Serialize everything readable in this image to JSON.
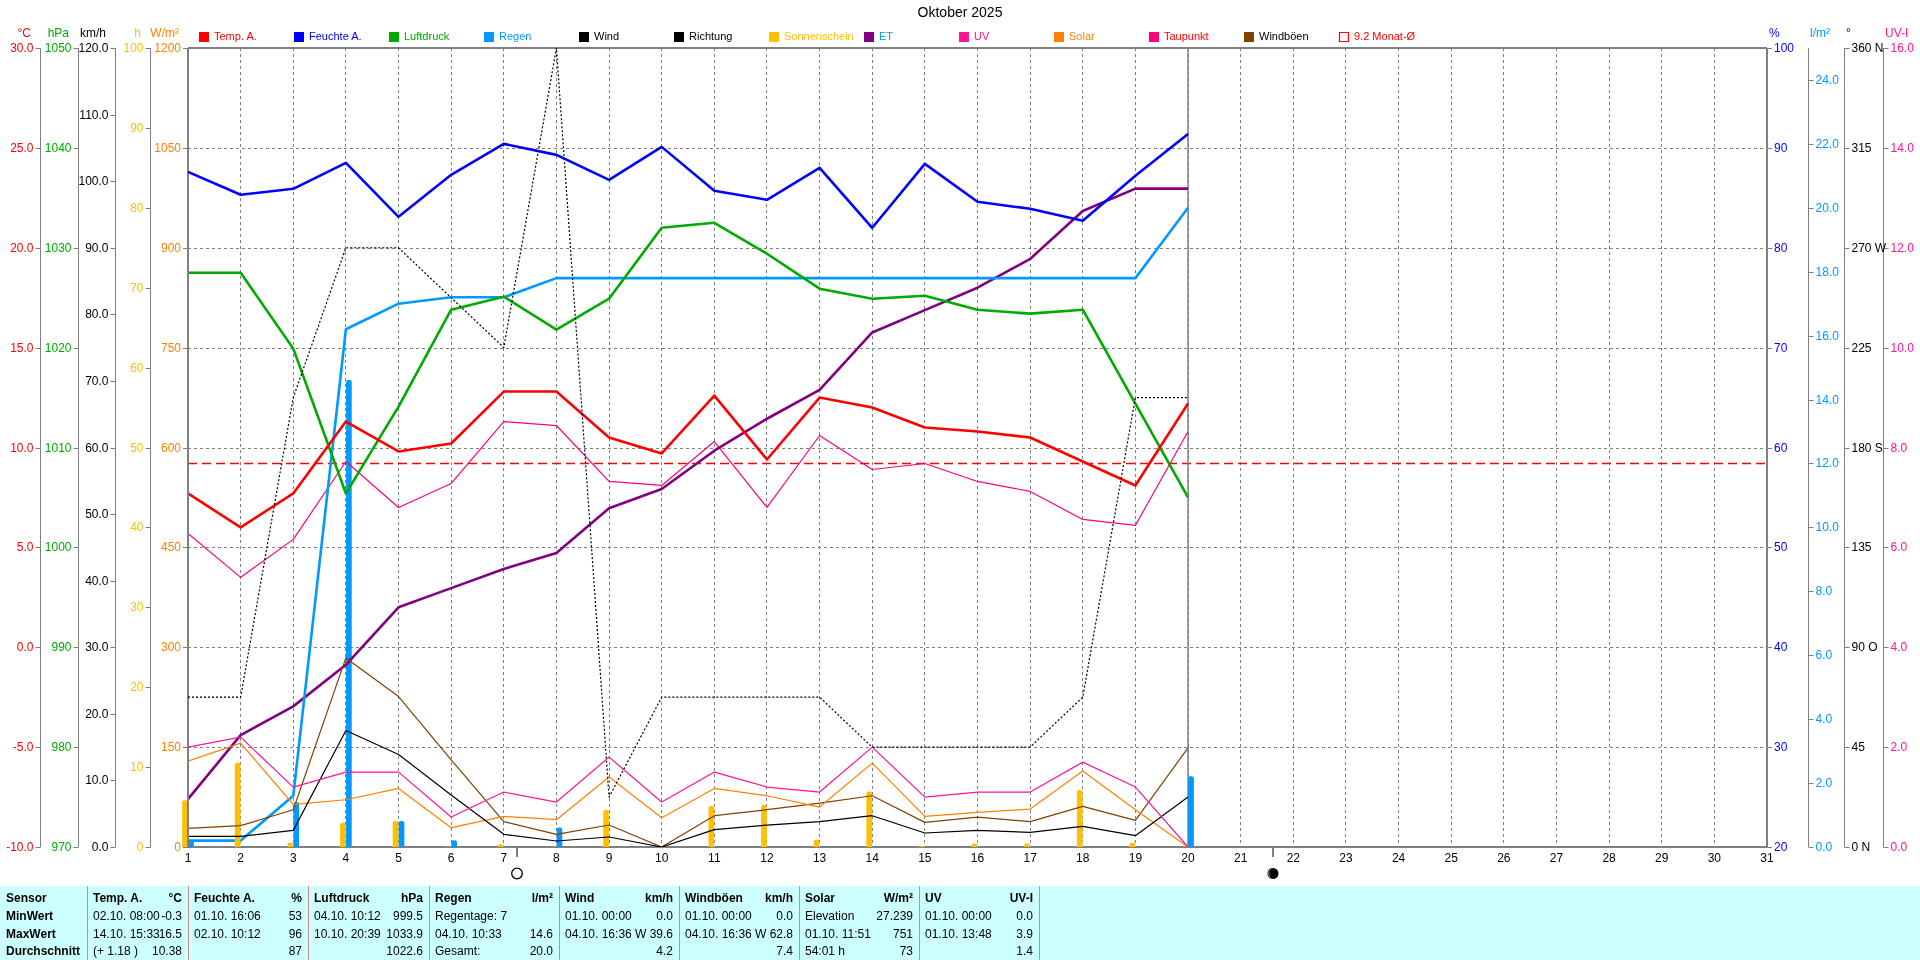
{
  "chart_data": [
    {
      "type": "line",
      "title": "Oktober 2025",
      "x": [
        1,
        2,
        3,
        4,
        5,
        6,
        7,
        8,
        9,
        10,
        11,
        12,
        13,
        14,
        15,
        16,
        17,
        18,
        19,
        20
      ],
      "xlim": [
        1,
        31
      ],
      "xticks": [
        1,
        2,
        3,
        4,
        5,
        6,
        7,
        8,
        9,
        10,
        11,
        12,
        13,
        14,
        15,
        16,
        17,
        18,
        19,
        20,
        21,
        22,
        23,
        24,
        25,
        26,
        27,
        28,
        29,
        30,
        31
      ],
      "ylabel": "°C",
      "ylim": [
        -10,
        30
      ],
      "yticks": [
        {
          "value": -10,
          "label": "-10.0"
        },
        {
          "value": -5,
          "label": "-5.0"
        },
        {
          "value": 0,
          "label": "0.0"
        },
        {
          "value": 5,
          "label": "5.0"
        },
        {
          "value": 10,
          "label": "10.0"
        },
        {
          "value": 15,
          "label": "15.0"
        },
        {
          "value": 20,
          "label": "20.0"
        },
        {
          "value": 25,
          "label": "25.0"
        },
        {
          "value": 30,
          "label": "30.0"
        }
      ],
      "y2label": "hPa",
      "y2lim": [
        970,
        1050
      ],
      "y2ticks": [
        970,
        980,
        990,
        1000,
        1010,
        1020,
        1030,
        1040,
        1050
      ],
      "y3label": "l/m²",
      "y3lim": [
        0,
        25
      ],
      "y3ticks": [
        {
          "value": 0,
          "label": "0.0"
        },
        {
          "value": 2,
          "label": "2.0"
        },
        {
          "value": 4,
          "label": "4.0"
        },
        {
          "value": 6,
          "label": "6.0"
        },
        {
          "value": 8,
          "label": "8.0"
        },
        {
          "value": 10,
          "label": "10.0"
        },
        {
          "value": 12,
          "label": "12.0"
        },
        {
          "value": 14,
          "label": "14.0"
        },
        {
          "value": 16,
          "label": "16.0"
        },
        {
          "value": 18,
          "label": "18.0"
        },
        {
          "value": 20,
          "label": "20.0"
        },
        {
          "value": 22,
          "label": "22.0"
        },
        {
          "value": 24,
          "label": "24.0"
        }
      ],
      "grid": true,
      "legend": "top",
      "marker": "none",
      "series": [
        {
          "name": "Temp. A.",
          "color": "#ff0000",
          "values": [
            7.7,
            6.0,
            7.7,
            11.3,
            9.8,
            10.2,
            12.8,
            12.8,
            10.5,
            9.7,
            12.6,
            9.4,
            12.5,
            12.0,
            11.0,
            10.8,
            10.5,
            9.3,
            8.1,
            12.2
          ]
        },
        {
          "name": "Luftdruck",
          "color": "#00aa00",
          "axis": "y2",
          "values": [
            1027.5,
            1027.5,
            1019.9,
            1005.4,
            1014.1,
            1023.8,
            1025.1,
            1021.8,
            1024.9,
            1032.0,
            1032.5,
            1029.4,
            1025.9,
            1024.9,
            1025.2,
            1023.8,
            1023.4,
            1023.8,
            1014.4,
            1005.0
          ]
        },
        {
          "name": "Regen",
          "color": "#0099ff",
          "axis": "y3",
          "values": [
            0.2,
            0.2,
            1.6,
            16.2,
            17.0,
            17.2,
            17.2,
            17.8,
            17.8,
            17.8,
            17.8,
            17.8,
            17.8,
            17.8,
            17.8,
            17.8,
            17.8,
            17.8,
            17.8,
            20.0
          ]
        },
        {
          "type": "bar",
          "color": "#0099ff",
          "axis": "y3",
          "values": [
            0.2,
            0,
            1.4,
            14.6,
            0.8,
            0.2,
            0,
            0.6,
            0,
            0,
            0,
            0,
            0,
            0,
            0,
            0,
            0,
            0,
            0,
            2.2
          ]
        },
        {
          "name": "ET",
          "color": "#800080",
          "axis": "y3",
          "values": [
            1.5,
            3.5,
            4.4,
            5.7,
            7.5,
            8.1,
            8.7,
            9.2,
            10.6,
            11.2,
            12.4,
            13.4,
            14.3,
            16.1,
            16.8,
            17.5,
            18.4,
            19.9,
            20.6,
            20.6
          ]
        },
        {
          "name": "Taupunkt",
          "color": "#ff0080",
          "values": [
            5.7,
            3.5,
            5.4,
            9.3,
            7.0,
            8.2,
            11.3,
            11.1,
            8.3,
            8.1,
            10.3,
            7.0,
            10.6,
            8.9,
            9.2,
            8.3,
            7.8,
            6.4,
            6.1,
            10.8
          ]
        }
      ],
      "ref_lines": [
        {
          "axis": "y",
          "value": 9.2,
          "label": "9.2 Monat-Ø",
          "color": "#ff0000",
          "line_style": "dashed"
        },
        {
          "axis": "x",
          "value": 20,
          "color": "#808080"
        }
      ],
      "annotations": [
        "Sensor",
        "Temp. A.",
        "°C",
        "Feuchte A.",
        "%",
        "Luftdruck",
        "hPa",
        "Regen",
        "l/m²",
        "Wind",
        "km/h",
        "Windböen",
        "km/h",
        "Solar",
        "W/m²",
        "UV",
        "UV-I",
        "MinWert",
        "02.10. 08:00",
        "-0.3",
        "01.10. 16:06",
        "53",
        "04.10. 10:12",
        "999.5",
        "Regentage: 7",
        "01.10. 00:00",
        "0.0",
        "01.10. 00:00",
        "0.0",
        "Elevation",
        "27.239",
        "01.10. 00:00",
        "0.0",
        "MaxWert",
        "14.10. 15:33",
        "16.5",
        "02.10. 10:12",
        "96",
        "10.10. 20:39",
        "1033.9",
        "04.10. 10:33",
        "14.6",
        "04.10. 16:36",
        "W 39.6",
        "04.10. 16:36",
        "W 62.8",
        "01.10. 11:51",
        "751",
        "01.10. 13:48",
        "3.9",
        "Durchschnitt",
        "(+ 1.18 )",
        "10.38",
        "87",
        "1022.6",
        "Gesamt:",
        "20.0",
        "4.2",
        "7.4",
        "54:01 h",
        "73",
        "1.4"
      ]
    },
    {
      "type": "line",
      "x": [
        1,
        2,
        3,
        4,
        5,
        6,
        7,
        8,
        9,
        10,
        11,
        12,
        13,
        14,
        15,
        16,
        17,
        18,
        19,
        20
      ],
      "xlim": [
        1,
        31
      ],
      "xticks": [
        1,
        2,
        3,
        4,
        5,
        6,
        7,
        8,
        9,
        10,
        11,
        12,
        13,
        14,
        15,
        16,
        17,
        18,
        19,
        20,
        21,
        22,
        23,
        24,
        25,
        26,
        27,
        28,
        29,
        30,
        31
      ],
      "tick_labels": "y",
      "ylabel": "km/h",
      "ylim": [
        0,
        120
      ],
      "yticks": [
        {
          "value": 0,
          "label": "0.0"
        },
        {
          "value": 10,
          "label": "10.0"
        },
        {
          "value": 20,
          "label": "20.0"
        },
        {
          "value": 30,
          "label": "30.0"
        },
        {
          "value": 40,
          "label": "40.0"
        },
        {
          "value": 50,
          "label": "50.0"
        },
        {
          "value": 60,
          "label": "60.0"
        },
        {
          "value": 70,
          "label": "70.0"
        },
        {
          "value": 80,
          "label": "80.0"
        },
        {
          "value": 90,
          "label": "90.0"
        },
        {
          "value": 100,
          "label": "100.0"
        },
        {
          "value": 110,
          "label": "110.0"
        },
        {
          "value": 120,
          "label": "120.0"
        }
      ],
      "y2label": "h",
      "y2lim": [
        0,
        100
      ],
      "y2ticks": [
        0,
        10,
        20,
        30,
        40,
        50,
        60,
        70,
        80,
        90,
        100
      ],
      "y3label": "W/m²",
      "y3lim": [
        0,
        1200
      ],
      "y3ticks": [
        0,
        150,
        300,
        450,
        600,
        750,
        900,
        1050,
        1200
      ],
      "legend": "top",
      "marker": "none",
      "series": [
        {
          "name": "Wind",
          "color": "#000000",
          "values": [
            1.6,
            1.6,
            2.5,
            17.5,
            13.9,
            7.8,
            1.9,
            0.9,
            1.5,
            0,
            2.6,
            3.3,
            3.8,
            4.7,
            2.1,
            2.5,
            2.2,
            3.1,
            1.7,
            7.5
          ]
        },
        {
          "name": "Sonnenschein",
          "type": "bar",
          "color": "#ffc000",
          "axis": "y2",
          "values": [
            5.8,
            10.5,
            0.5,
            3.0,
            3.2,
            0,
            0.3,
            0,
            4.6,
            0,
            5.1,
            5.2,
            0.9,
            6.9,
            0.1,
            0.4,
            0.4,
            7.1,
            0.5,
            0
          ]
        },
        {
          "name": "Solar",
          "color": "#ff8000",
          "axis": "y3",
          "values": [
            129,
            156,
            64,
            71,
            88,
            29,
            46,
            41,
            105,
            44,
            88,
            77,
            60,
            126,
            46,
            52,
            57,
            114,
            56,
            0
          ]
        },
        {
          "name": "Windböen",
          "color": "#804000",
          "values": [
            2.8,
            3.2,
            5.6,
            28.4,
            22.6,
            13.1,
            3.8,
            1.9,
            3.3,
            0,
            4.7,
            5.6,
            6.6,
            7.7,
            3.7,
            4.5,
            3.8,
            6.1,
            4.0,
            14.9
          ]
        }
      ]
    },
    {
      "type": "line",
      "x": [
        1,
        2,
        3,
        4,
        5,
        6,
        7,
        8,
        9,
        10,
        11,
        12,
        13,
        14,
        15,
        16,
        17,
        18,
        19,
        20
      ],
      "xlim": [
        1,
        31
      ],
      "xticks": [
        1,
        2,
        3,
        4,
        5,
        6,
        7,
        8,
        9,
        10,
        11,
        12,
        13,
        14,
        15,
        16,
        17,
        18,
        19,
        20,
        21,
        22,
        23,
        24,
        25,
        26,
        27,
        28,
        29,
        30,
        31
      ],
      "tick_labels": "y",
      "ylabel": "UV-I",
      "ylim": [
        0,
        16
      ],
      "yticks": [
        {
          "value": 0,
          "label": "0.0"
        },
        {
          "value": 2,
          "label": "2.0"
        },
        {
          "value": 4,
          "label": "4.0"
        },
        {
          "value": 6,
          "label": "6.0"
        },
        {
          "value": 8,
          "label": "8.0"
        },
        {
          "value": 10,
          "label": "10.0"
        },
        {
          "value": 12,
          "label": "12.0"
        },
        {
          "value": 14,
          "label": "14.0"
        },
        {
          "value": 16,
          "label": "16.0"
        }
      ],
      "y2label": "%",
      "y2lim": [
        20,
        100
      ],
      "y2ticks": [
        20,
        30,
        40,
        50,
        60,
        70,
        80,
        90,
        100
      ],
      "y3label": "°",
      "y3lim": [
        0,
        360
      ],
      "y3ticks": [
        {
          "value": 0,
          "label": "0 N"
        },
        45,
        {
          "value": 90,
          "label": "90 O"
        },
        135,
        {
          "value": 180,
          "label": "180 S"
        },
        225,
        {
          "value": 270,
          "label": "270 W"
        },
        315,
        {
          "value": 360,
          "label": "360 N"
        }
      ],
      "legend": "top",
      "marker": "none",
      "series": [
        {
          "name": "Feuchte A.",
          "color": "#0000ff",
          "axis": "y2",
          "values": [
            87.6,
            85.3,
            85.9,
            88.5,
            83.1,
            87.3,
            90.4,
            89.3,
            86.8,
            90.1,
            85.7,
            84.8,
            88.0,
            82.0,
            88.4,
            84.6,
            83.9,
            82.7,
            87.2,
            91.4
          ]
        },
        {
          "name": "Richtung",
          "color": "#000000",
          "axis": "y3",
          "line_style": "dotted",
          "values": [
            67.5,
            67.5,
            202.5,
            270,
            270,
            247.5,
            225,
            360,
            22.5,
            67.5,
            67.5,
            67.5,
            67.5,
            45,
            45,
            45,
            45,
            67.5,
            202.5,
            202.5
          ]
        },
        {
          "name": "UV",
          "color": "#ff1493",
          "values": [
            2.0,
            2.2,
            1.2,
            1.5,
            1.5,
            0.6,
            1.1,
            0.9,
            1.8,
            0.9,
            1.5,
            1.2,
            1.1,
            2.0,
            1.0,
            1.1,
            1.1,
            1.7,
            1.2,
            0
          ]
        }
      ]
    }
  ]
}
